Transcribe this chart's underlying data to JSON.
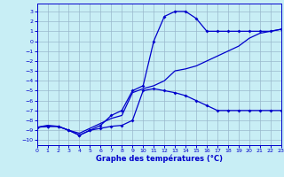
{
  "xlabel": "Graphe des températures (°C)",
  "xlim": [
    0,
    23
  ],
  "ylim": [
    -10.5,
    3.8
  ],
  "xticks": [
    0,
    1,
    2,
    3,
    4,
    5,
    6,
    7,
    8,
    9,
    10,
    11,
    12,
    13,
    14,
    15,
    16,
    17,
    18,
    19,
    20,
    21,
    22,
    23
  ],
  "yticks": [
    3,
    2,
    1,
    0,
    -1,
    -2,
    -3,
    -4,
    -5,
    -6,
    -7,
    -8,
    -9,
    -10
  ],
  "bg_color": "#c8eef5",
  "line_color": "#0000cc",
  "grid_color": "#9ab8cc",
  "curve1_x": [
    0,
    1,
    2,
    3,
    4,
    5,
    6,
    7,
    8,
    9,
    10,
    11,
    12,
    13,
    14,
    15,
    16,
    17,
    18,
    19,
    20,
    21,
    22,
    23
  ],
  "curve1_y": [
    -8.7,
    -8.6,
    -8.6,
    -9.0,
    -9.5,
    -9.0,
    -8.8,
    -8.6,
    -8.5,
    -8.0,
    -5.0,
    -4.8,
    -5.0,
    -5.2,
    -5.5,
    -6.0,
    -6.5,
    -7.0,
    -7.0,
    -7.0,
    -7.0,
    -7.0,
    -7.0,
    -7.0
  ],
  "curve2_x": [
    0,
    1,
    2,
    3,
    4,
    5,
    6,
    7,
    8,
    9,
    10,
    11,
    12,
    13,
    14,
    15,
    16,
    17,
    18,
    19,
    20,
    21,
    22,
    23
  ],
  "curve2_y": [
    -8.7,
    -8.6,
    -8.6,
    -9.0,
    -9.5,
    -9.0,
    -8.5,
    -7.5,
    -7.0,
    -5.0,
    -4.5,
    0.0,
    2.5,
    3.0,
    3.0,
    2.3,
    1.0,
    1.0,
    1.0,
    1.0,
    1.0,
    1.0,
    1.0,
    1.2
  ],
  "curve3_x": [
    0,
    1,
    2,
    3,
    4,
    5,
    6,
    7,
    8,
    9,
    10,
    11,
    12,
    13,
    14,
    15,
    16,
    17,
    18,
    19,
    20,
    21,
    22,
    23
  ],
  "curve3_y": [
    -8.7,
    -8.5,
    -8.6,
    -9.0,
    -9.3,
    -8.8,
    -8.3,
    -7.8,
    -7.5,
    -5.2,
    -4.8,
    -4.5,
    -4.0,
    -3.0,
    -2.8,
    -2.5,
    -2.0,
    -1.5,
    -1.0,
    -0.5,
    0.3,
    0.8,
    1.0,
    1.2
  ],
  "markersize": 2.0,
  "lw": 0.9
}
